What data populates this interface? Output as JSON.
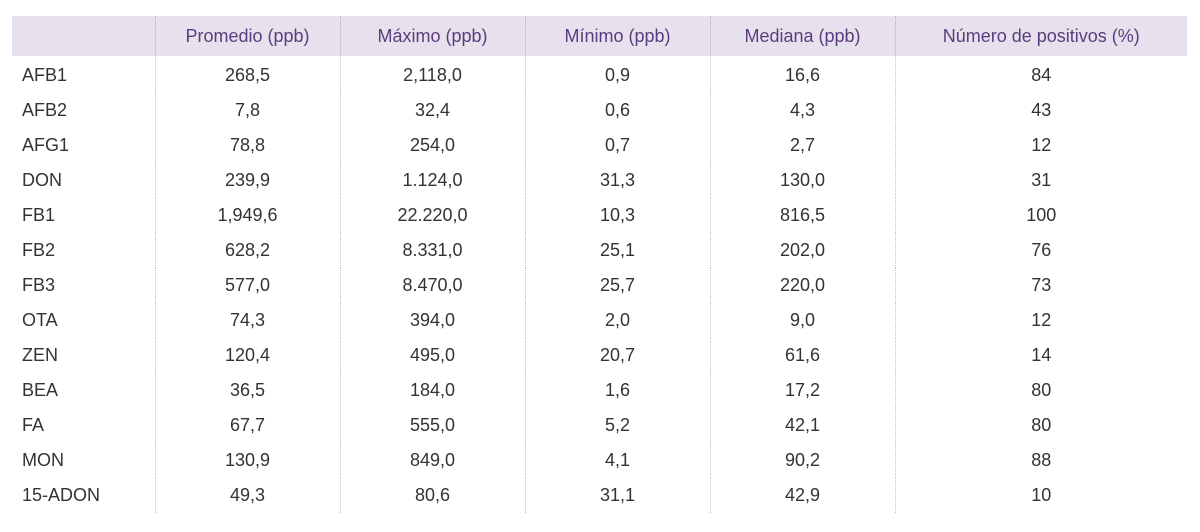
{
  "table": {
    "headers": [
      "",
      "Promedio (ppb)",
      "Máximo (ppb)",
      "Mínimo (ppb)",
      "Mediana (ppb)",
      "Número de positivos (%)"
    ],
    "rows": [
      [
        "AFB1",
        "268,5",
        "2,118,0",
        "0,9",
        "16,6",
        "84"
      ],
      [
        "AFB2",
        "7,8",
        "32,4",
        "0,6",
        "4,3",
        "43"
      ],
      [
        "AFG1",
        "78,8",
        "254,0",
        "0,7",
        "2,7",
        "12"
      ],
      [
        "DON",
        "239,9",
        "1.124,0",
        "31,3",
        "130,0",
        "31"
      ],
      [
        "FB1",
        "1,949,6",
        "22.220,0",
        "10,3",
        "816,5",
        "100"
      ],
      [
        "FB2",
        "628,2",
        "8.331,0",
        "25,1",
        "202,0",
        "76"
      ],
      [
        "FB3",
        "577,0",
        "8.470,0",
        "25,7",
        "220,0",
        "73"
      ],
      [
        "OTA",
        "74,3",
        "394,0",
        "2,0",
        "9,0",
        "12"
      ],
      [
        "ZEN",
        "120,4",
        "495,0",
        "20,7",
        "61,6",
        "14"
      ],
      [
        "BEA",
        "36,5",
        "184,0",
        "1,6",
        "17,2",
        "80"
      ],
      [
        "FA",
        "67,7",
        "555,0",
        "5,2",
        "42,1",
        "80"
      ],
      [
        "MON",
        "130,9",
        "849,0",
        "4,1",
        "90,2",
        "88"
      ],
      [
        "15-ADON",
        "49,3",
        "80,6",
        "31,1",
        "42,9",
        "10"
      ]
    ]
  },
  "colors": {
    "header_bg": "#e6e1ec",
    "header_text": "#5a3d7e",
    "body_text": "#333333"
  }
}
